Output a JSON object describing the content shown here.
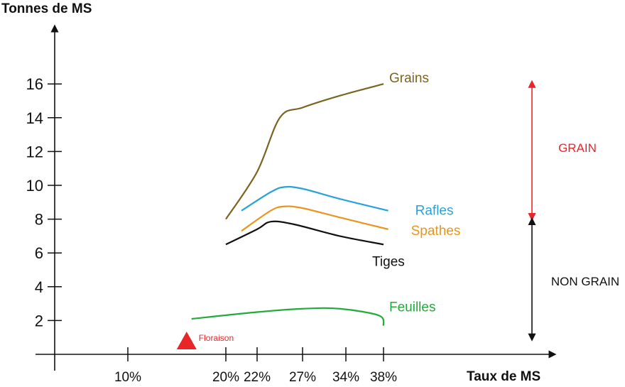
{
  "chart_data": {
    "type": "line",
    "ylabel": "Tonnes de MS",
    "xlabel": "Taux de MS",
    "ylim": [
      0,
      18
    ],
    "yticks": [
      2,
      4,
      6,
      8,
      10,
      12,
      14,
      16
    ],
    "x_axis_ticks": [
      "10%",
      "20%",
      "22%",
      "27%",
      "34%",
      "38%"
    ],
    "x_tick_values": [
      10,
      20,
      22,
      27,
      34,
      38
    ],
    "xlim": [
      0,
      50
    ],
    "grid": false,
    "series": [
      {
        "name": "Grains",
        "color": "#7a6420",
        "x": [
          20.0,
          22.0,
          24.5,
          27.0,
          33.0,
          38.0
        ],
        "y": [
          8.0,
          10.8,
          14.0,
          14.6,
          15.3,
          16.0
        ]
      },
      {
        "name": "Rafles",
        "color": "#29a3d6",
        "x": [
          21.0,
          23.5,
          25.0,
          27.0,
          33.0,
          38.5
        ],
        "y": [
          8.5,
          9.6,
          9.9,
          9.8,
          9.2,
          8.5
        ]
      },
      {
        "name": "Spathes",
        "color": "#e8961e",
        "x": [
          21.0,
          23.5,
          25.0,
          27.0,
          33.0,
          38.5
        ],
        "y": [
          7.3,
          8.5,
          8.75,
          8.65,
          8.1,
          7.4
        ]
      },
      {
        "name": "Tiges",
        "color": "#111111",
        "x": [
          20.0,
          22.0,
          23.5,
          26.0,
          33.0,
          38.0
        ],
        "y": [
          6.5,
          7.4,
          7.85,
          7.7,
          7.0,
          6.5
        ]
      },
      {
        "name": "Feuilles",
        "color": "#22aa3a",
        "x": [
          16.5,
          22.0,
          27.0,
          33.0,
          37.5,
          38.0
        ],
        "y": [
          2.1,
          2.5,
          2.7,
          2.7,
          2.3,
          1.7
        ]
      }
    ],
    "annotations": {
      "grain_bracket": {
        "label": "GRAIN",
        "from": 8,
        "to": 16,
        "color": "#e8262a"
      },
      "non_grain_bracket": {
        "label": "NON GRAIN",
        "from": 1,
        "to": 8,
        "color": "#111111"
      },
      "flowering_marker": {
        "label": "Floraison",
        "x": 16.0,
        "color": "#e8262a"
      }
    }
  }
}
